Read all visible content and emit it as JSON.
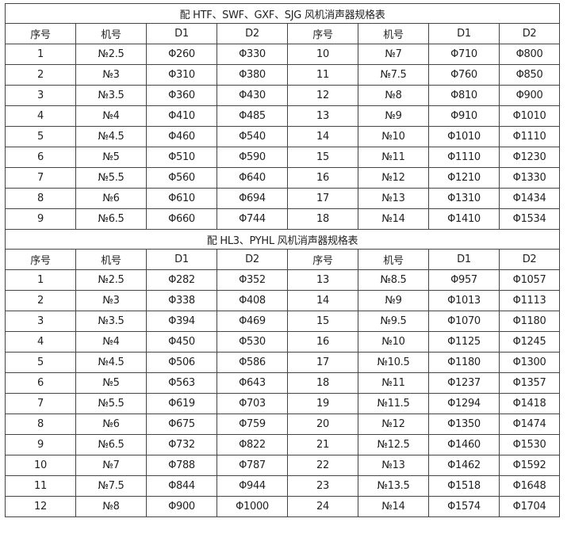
{
  "tables": [
    {
      "title": "配 HTF、SWF、GXF、SJG 风机消声器规格表",
      "headers": [
        "序号",
        "机号",
        "D1",
        "D2",
        "序号",
        "机号",
        "D1",
        "D2"
      ],
      "rows": [
        [
          "1",
          "№2.5",
          "Φ260",
          "Φ330",
          "10",
          "№7",
          "Φ710",
          "Φ800"
        ],
        [
          "2",
          "№3",
          "Φ310",
          "Φ380",
          "11",
          "№7.5",
          "Φ760",
          "Φ850"
        ],
        [
          "3",
          "№3.5",
          "Φ360",
          "Φ430",
          "12",
          "№8",
          "Φ810",
          "Φ900"
        ],
        [
          "4",
          "№4",
          "Φ410",
          "Φ485",
          "13",
          "№9",
          "Φ910",
          "Φ1010"
        ],
        [
          "5",
          "№4.5",
          "Φ460",
          "Φ540",
          "14",
          "№10",
          "Φ1010",
          "Φ1110"
        ],
        [
          "6",
          "№5",
          "Φ510",
          "Φ590",
          "15",
          "№11",
          "Φ1110",
          "Φ1230"
        ],
        [
          "7",
          "№5.5",
          "Φ560",
          "Φ640",
          "16",
          "№12",
          "Φ1210",
          "Φ1330"
        ],
        [
          "8",
          "№6",
          "Φ610",
          "Φ694",
          "17",
          "№13",
          "Φ1310",
          "Φ1434"
        ],
        [
          "9",
          "№6.5",
          "Φ660",
          "Φ744",
          "18",
          "№14",
          "Φ1410",
          "Φ1534"
        ]
      ]
    },
    {
      "title": "配 HL3、PYHL 风机消声器规格表",
      "headers": [
        "序号",
        "机号",
        "D1",
        "D2",
        "序号",
        "机号",
        "D1",
        "D2"
      ],
      "rows": [
        [
          "1",
          "№2.5",
          "Φ282",
          "Φ352",
          "13",
          "№8.5",
          "Φ957",
          "Φ1057"
        ],
        [
          "2",
          "№3",
          "Φ338",
          "Φ408",
          "14",
          "№9",
          "Φ1013",
          "Φ1113"
        ],
        [
          "3",
          "№3.5",
          "Φ394",
          "Φ469",
          "15",
          "№9.5",
          "Φ1070",
          "Φ1180"
        ],
        [
          "4",
          "№4",
          "Φ450",
          "Φ530",
          "16",
          "№10",
          "Φ1125",
          "Φ1245"
        ],
        [
          "5",
          "№4.5",
          "Φ506",
          "Φ586",
          "17",
          "№10.5",
          "Φ1180",
          "Φ1300"
        ],
        [
          "6",
          "№5",
          "Φ563",
          "Φ643",
          "18",
          "№11",
          "Φ1237",
          "Φ1357"
        ],
        [
          "7",
          "№5.5",
          "Φ619",
          "Φ703",
          "19",
          "№11.5",
          "Φ1294",
          "Φ1418"
        ],
        [
          "8",
          "№6",
          "Φ675",
          "Φ759",
          "20",
          "№12",
          "Φ1350",
          "Φ1474"
        ],
        [
          "9",
          "№6.5",
          "Φ732",
          "Φ822",
          "21",
          "№12.5",
          "Φ1460",
          "Φ1530"
        ],
        [
          "10",
          "№7",
          "Φ788",
          "Φ787",
          "22",
          "№13",
          "Φ1462",
          "Φ1592"
        ],
        [
          "11",
          "№7.5",
          "Φ844",
          "Φ944",
          "23",
          "№13.5",
          "Φ1518",
          "Φ1648"
        ],
        [
          "12",
          "№8",
          "Φ900",
          "Φ1000",
          "24",
          "№14",
          "Φ1574",
          "Φ1704"
        ]
      ]
    }
  ]
}
